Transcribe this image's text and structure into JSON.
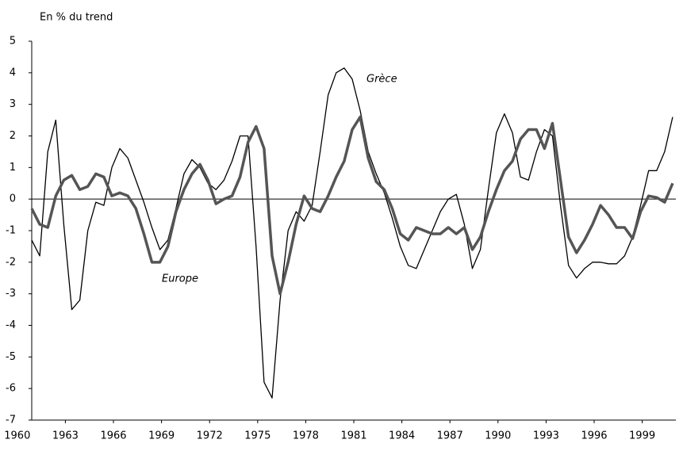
{
  "chart_data": {
    "type": "line",
    "title": "En % du trend",
    "annotations": [
      "Grèce",
      "Europe"
    ],
    "x": [
      1960.9,
      1961.4,
      1961.9,
      1962.4,
      1962.9,
      1963.4,
      1963.9,
      1964.4,
      1964.9,
      1965.4,
      1965.9,
      1966.4,
      1966.9,
      1967.4,
      1967.9,
      1968.4,
      1968.9,
      1969.4,
      1969.9,
      1970.4,
      1970.9,
      1971.4,
      1971.9,
      1972.4,
      1972.9,
      1973.4,
      1973.9,
      1974.4,
      1974.9,
      1975.4,
      1975.9,
      1976.4,
      1976.9,
      1977.4,
      1977.9,
      1978.4,
      1978.9,
      1979.4,
      1979.9,
      1980.4,
      1980.9,
      1981.4,
      1981.9,
      1982.4,
      1982.9,
      1983.4,
      1983.9,
      1984.4,
      1984.9,
      1985.4,
      1985.9,
      1986.4,
      1986.9,
      1987.4,
      1987.9,
      1988.4,
      1988.9,
      1989.4,
      1989.9,
      1990.4,
      1990.9,
      1991.4,
      1991.9,
      1992.4,
      1992.9,
      1993.4,
      1993.9,
      1994.4,
      1994.9,
      1995.4,
      1995.9,
      1996.4,
      1996.9,
      1997.4,
      1997.9,
      1998.4,
      1998.9,
      1999.4,
      1999.9,
      2000.4,
      2000.9
    ],
    "series": [
      {
        "name": "Grèce",
        "color": "#000000",
        "width": 1.3,
        "values": [
          -1.3,
          -1.8,
          1.5,
          2.5,
          -0.8,
          -3.5,
          -3.2,
          -1.0,
          -0.1,
          -0.2,
          1.0,
          1.6,
          1.3,
          0.6,
          -0.1,
          -0.9,
          -1.6,
          -1.3,
          -0.3,
          0.8,
          1.25,
          1.0,
          0.5,
          0.3,
          0.6,
          1.2,
          2.0,
          2.0,
          -1.5,
          -5.8,
          -6.3,
          -3.2,
          -1.0,
          -0.4,
          -0.7,
          -0.2,
          1.5,
          3.3,
          4.0,
          4.15,
          3.8,
          2.8,
          1.5,
          0.8,
          0.2,
          -0.6,
          -1.5,
          -2.1,
          -2.2,
          -1.6,
          -1.0,
          -0.4,
          0.0,
          0.15,
          -0.8,
          -2.2,
          -1.6,
          0.3,
          2.1,
          2.7,
          2.1,
          0.7,
          0.6,
          1.5,
          2.2,
          2.0,
          -0.2,
          -2.1,
          -2.5,
          -2.2,
          -2.0,
          -2.0,
          -2.05,
          -2.05,
          -1.8,
          -1.2,
          -0.2,
          0.9,
          0.9,
          1.5,
          2.6
        ]
      },
      {
        "name": "Europe",
        "color": "#555555",
        "width": 3.5,
        "values": [
          -0.3,
          -0.8,
          -0.9,
          0.1,
          0.6,
          0.75,
          0.3,
          0.4,
          0.8,
          0.7,
          0.1,
          0.2,
          0.1,
          -0.3,
          -1.1,
          -2.0,
          -2.0,
          -1.5,
          -0.4,
          0.3,
          0.8,
          1.1,
          0.6,
          -0.15,
          0.0,
          0.1,
          0.7,
          1.8,
          2.3,
          1.6,
          -1.8,
          -3.0,
          -2.0,
          -0.8,
          0.1,
          -0.3,
          -0.4,
          0.1,
          0.7,
          1.2,
          2.2,
          2.6,
          1.3,
          0.55,
          0.3,
          -0.3,
          -1.1,
          -1.3,
          -0.9,
          -1.0,
          -1.1,
          -1.1,
          -0.9,
          -1.1,
          -0.9,
          -1.6,
          -1.2,
          -0.4,
          0.3,
          0.9,
          1.2,
          1.9,
          2.2,
          2.2,
          1.6,
          2.4,
          0.6,
          -1.2,
          -1.7,
          -1.3,
          -0.8,
          -0.2,
          -0.5,
          -0.9,
          -0.9,
          -1.25,
          -0.4,
          0.1,
          0.05,
          -0.1,
          0.5
        ]
      }
    ],
    "xlim": [
      1960.9,
      2001.1
    ],
    "xticks": [
      1960,
      1963,
      1966,
      1969,
      1972,
      1975,
      1978,
      1981,
      1984,
      1987,
      1990,
      1993,
      1996,
      1999
    ],
    "ylim": [
      -7,
      5
    ],
    "yticks": [
      -7,
      -6,
      -5,
      -4,
      -3,
      -2,
      -1,
      0,
      1,
      2,
      3,
      4,
      5
    ],
    "zero_line": true,
    "grid": false
  }
}
